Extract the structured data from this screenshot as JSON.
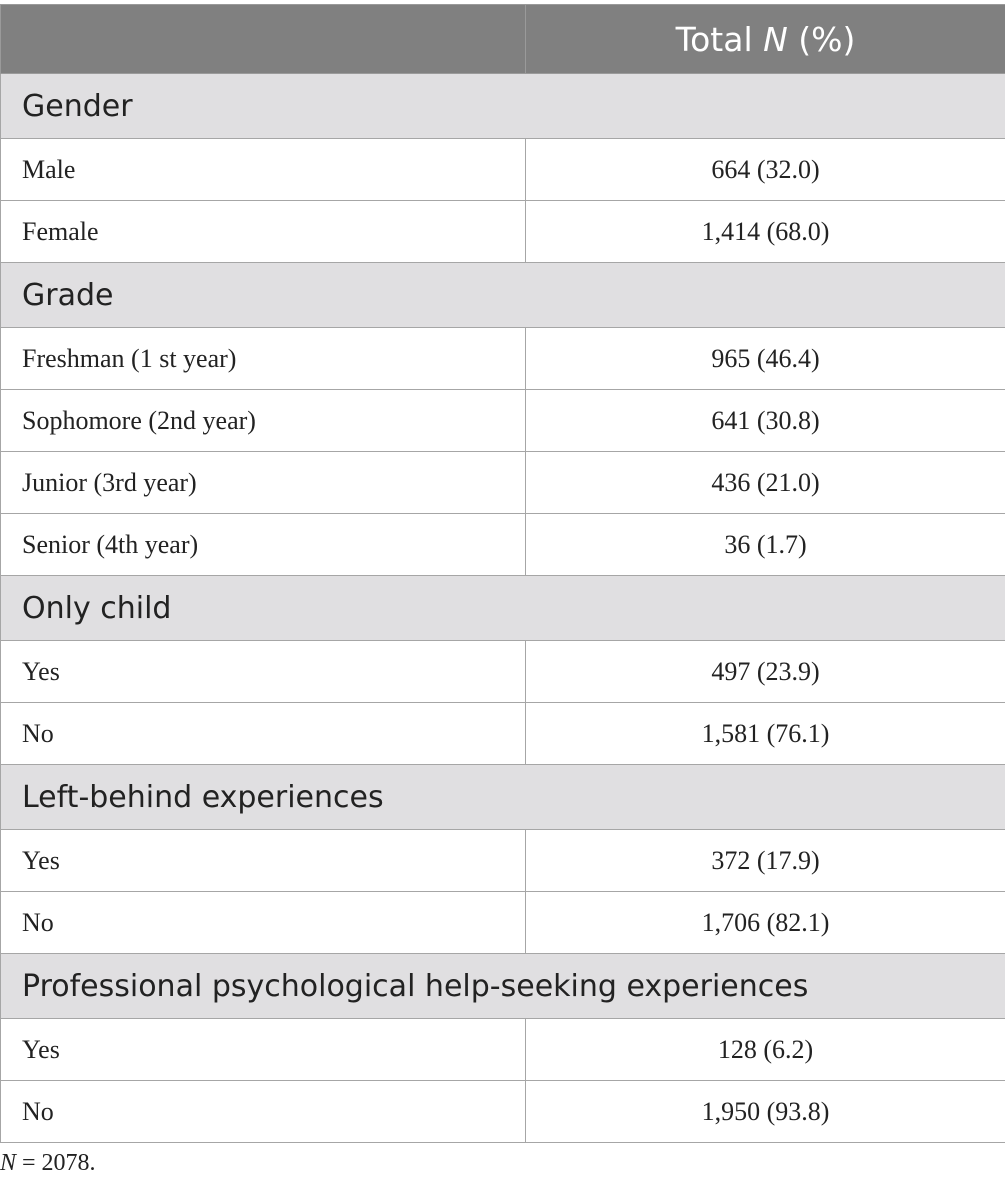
{
  "table": {
    "header": {
      "col1": "",
      "col2_prefix": "Total ",
      "col2_var": "N",
      "col2_suffix": " (%)"
    },
    "sections": [
      {
        "title": "Gender",
        "rows": [
          {
            "label": "Male",
            "value": "664 (32.0)"
          },
          {
            "label": "Female",
            "value": "1,414 (68.0)"
          }
        ]
      },
      {
        "title": "Grade",
        "rows": [
          {
            "label": "Freshman (1 st year)",
            "value": "965 (46.4)"
          },
          {
            "label": "Sophomore (2nd year)",
            "value": "641 (30.8)"
          },
          {
            "label": "Junior (3rd year)",
            "value": "436 (21.0)"
          },
          {
            "label": "Senior (4th year)",
            "value": "36 (1.7)"
          }
        ]
      },
      {
        "title": "Only child",
        "rows": [
          {
            "label": "Yes",
            "value": "497 (23.9)"
          },
          {
            "label": "No",
            "value": "1,581 (76.1)"
          }
        ]
      },
      {
        "title": "Left-behind experiences",
        "rows": [
          {
            "label": "Yes",
            "value": "372 (17.9)"
          },
          {
            "label": "No",
            "value": "1,706 (82.1)"
          }
        ]
      },
      {
        "title": "Professional psychological help-seeking experiences",
        "rows": [
          {
            "label": "Yes",
            "value": "128 (6.2)"
          },
          {
            "label": "No",
            "value": "1,950 (93.8)"
          }
        ]
      }
    ]
  },
  "footnote": {
    "var": "N",
    "text": " = 2078."
  }
}
